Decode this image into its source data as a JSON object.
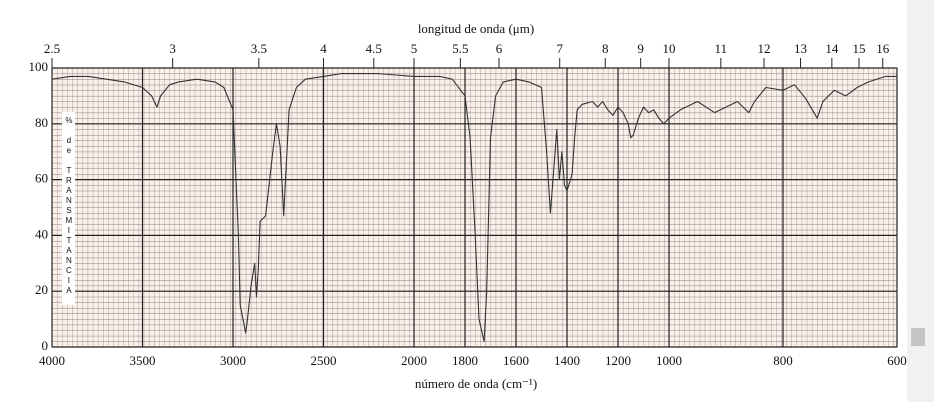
{
  "chart_data": {
    "type": "line",
    "top_label": "longitud de onda (μm)",
    "x_label": "número de onda (cm⁻¹)",
    "y_label": "% de TRANSMITANCIA",
    "x": [
      4000,
      3900,
      3800,
      3700,
      3600,
      3500,
      3450,
      3420,
      3400,
      3350,
      3300,
      3200,
      3100,
      3050,
      3000,
      2990,
      2970,
      2960,
      2930,
      2920,
      2900,
      2880,
      2870,
      2860,
      2850,
      2820,
      2780,
      2760,
      2740,
      2720,
      2710,
      2690,
      2650,
      2600,
      2500,
      2400,
      2300,
      2200,
      2100,
      2000,
      1900,
      1850,
      1800,
      1780,
      1760,
      1745,
      1725,
      1715,
      1700,
      1680,
      1650,
      1600,
      1550,
      1500,
      1480,
      1465,
      1455,
      1440,
      1430,
      1420,
      1410,
      1400,
      1380,
      1370,
      1360,
      1340,
      1300,
      1280,
      1260,
      1240,
      1220,
      1200,
      1180,
      1160,
      1150,
      1140,
      1120,
      1100,
      1080,
      1060,
      1040,
      1020,
      1000,
      980,
      950,
      920,
      900,
      880,
      860,
      850,
      830,
      800,
      780,
      760,
      740,
      730,
      710,
      690,
      670,
      650,
      620,
      600
    ],
    "values": [
      96,
      97,
      97,
      96,
      95,
      93,
      90,
      86,
      90,
      94,
      95,
      96,
      95,
      93,
      85,
      70,
      40,
      15,
      5,
      10,
      22,
      30,
      18,
      28,
      45,
      47,
      70,
      80,
      72,
      47,
      60,
      85,
      93,
      96,
      97,
      98,
      98,
      98,
      97.5,
      97,
      97,
      96,
      90,
      75,
      40,
      10,
      2,
      20,
      75,
      90,
      95,
      96,
      95,
      93,
      70,
      48,
      60,
      78,
      60,
      70,
      58,
      56,
      62,
      75,
      85,
      87,
      88,
      86,
      88,
      85,
      83,
      86,
      84,
      80,
      75,
      76,
      82,
      86,
      84,
      85,
      82,
      80,
      82,
      85,
      88,
      84,
      86,
      88,
      84,
      88,
      93,
      92,
      94,
      89,
      82,
      88,
      92,
      90,
      93,
      95,
      97,
      97
    ],
    "color": "#333333",
    "xlim": [
      4000,
      600
    ],
    "x_scale_breaks": [
      2000,
      1000
    ],
    "xticks": [
      4000,
      3500,
      3000,
      2500,
      2000,
      1800,
      1600,
      1400,
      1200,
      1000,
      800,
      600
    ],
    "x2ticks": [
      2.5,
      3,
      3.5,
      4,
      4.5,
      5,
      5.5,
      6,
      7,
      8,
      9,
      10,
      11,
      12,
      13,
      14,
      15,
      16
    ],
    "ylim": [
      0,
      100
    ],
    "yticks": [
      0,
      20,
      40,
      60,
      80,
      100
    ],
    "grid": true
  }
}
